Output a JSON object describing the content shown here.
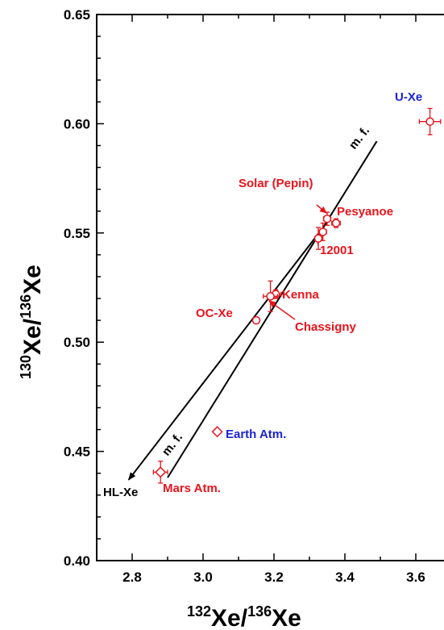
{
  "chart_data": {
    "type": "scatter",
    "xlim": [
      2.7,
      3.7
    ],
    "ylim": [
      0.4,
      0.65
    ],
    "x_ticks": [
      "2.8",
      "3.0",
      "3.2",
      "3.4",
      "3.6"
    ],
    "x_tick_values": [
      2.8,
      3.0,
      3.2,
      3.4,
      3.6
    ],
    "y_ticks": [
      "0.40",
      "0.45",
      "0.50",
      "0.55",
      "0.60",
      "0.65"
    ],
    "y_tick_values": [
      0.4,
      0.45,
      0.5,
      0.55,
      0.6,
      0.65
    ],
    "xlabel": {
      "sup1": "132",
      "main1": "Xe/",
      "sup2": "136",
      "main2": "Xe"
    },
    "ylabel": {
      "sup1": "130",
      "main1": "Xe/",
      "sup2": "136",
      "main2": "Xe"
    },
    "colors": {
      "red": "#e8141c",
      "blue": "#1a24d4",
      "black": "#000000"
    },
    "points": [
      {
        "name": "U-Xe",
        "x": 3.64,
        "y": 0.601,
        "xerr": 0.03,
        "yerr": 0.006,
        "marker": "circle",
        "label": "U-Xe",
        "label_color": "#1a24d4"
      },
      {
        "name": "Solar (Pepin)",
        "x": 3.35,
        "y": 0.5565,
        "xerr": 0.01,
        "yerr": 0.003,
        "marker": "circle",
        "label": "Solar (Pepin)",
        "label_color": "#e8141c"
      },
      {
        "name": "Pesyanoe",
        "x": 3.375,
        "y": 0.5545,
        "xerr": 0.012,
        "yerr": 0.002,
        "marker": "circle",
        "label": "Pesyanoe",
        "label_color": "#e8141c"
      },
      {
        "name": "12001-a",
        "x": 3.338,
        "y": 0.5505,
        "xerr": 0.01,
        "yerr": 0.004,
        "marker": "circle",
        "label": "",
        "label_color": "#e8141c"
      },
      {
        "name": "12001",
        "x": 3.325,
        "y": 0.5475,
        "xerr": 0.01,
        "yerr": 0.005,
        "marker": "circle",
        "label": "12001",
        "label_color": "#e8141c"
      },
      {
        "name": "Kenna",
        "x": 3.205,
        "y": 0.522,
        "xerr": 0.015,
        "yerr": 0.002,
        "marker": "circle",
        "label": "Kenna",
        "label_color": "#e8141c"
      },
      {
        "name": "Chassigny",
        "x": 3.19,
        "y": 0.521,
        "xerr": 0.02,
        "yerr": 0.007,
        "marker": "circle",
        "label": "Chassigny",
        "label_color": "#e8141c"
      },
      {
        "name": "OC-Xe",
        "x": 3.15,
        "y": 0.51,
        "xerr": 0,
        "yerr": 0,
        "marker": "circle",
        "label": "OC-Xe",
        "label_color": "#e8141c"
      },
      {
        "name": "Earth Atm.",
        "x": 3.04,
        "y": 0.459,
        "xerr": 0,
        "yerr": 0,
        "marker": "diamond",
        "label": "Earth Atm.",
        "label_color": "#1a24d4"
      },
      {
        "name": "Mars Atm.",
        "x": 2.88,
        "y": 0.4405,
        "xerr": 0.02,
        "yerr": 0.005,
        "marker": "diamond",
        "label": "Mars Atm.",
        "label_color": "#e8141c"
      }
    ],
    "lines": [
      {
        "name": "mixing-line-upper",
        "x1": 2.79,
        "y1": 0.437,
        "x2": 3.36,
        "y2": 0.557,
        "label": "",
        "arrow": "start"
      },
      {
        "name": "mixing-line-lower",
        "x1": 2.9,
        "y1": 0.438,
        "x2": 3.49,
        "y2": 0.592,
        "label": "",
        "arrow": ""
      }
    ],
    "annotations": {
      "mf_upper": "m. f.",
      "mf_lower": "m. f.",
      "hl_xe": "HL-Xe"
    }
  }
}
